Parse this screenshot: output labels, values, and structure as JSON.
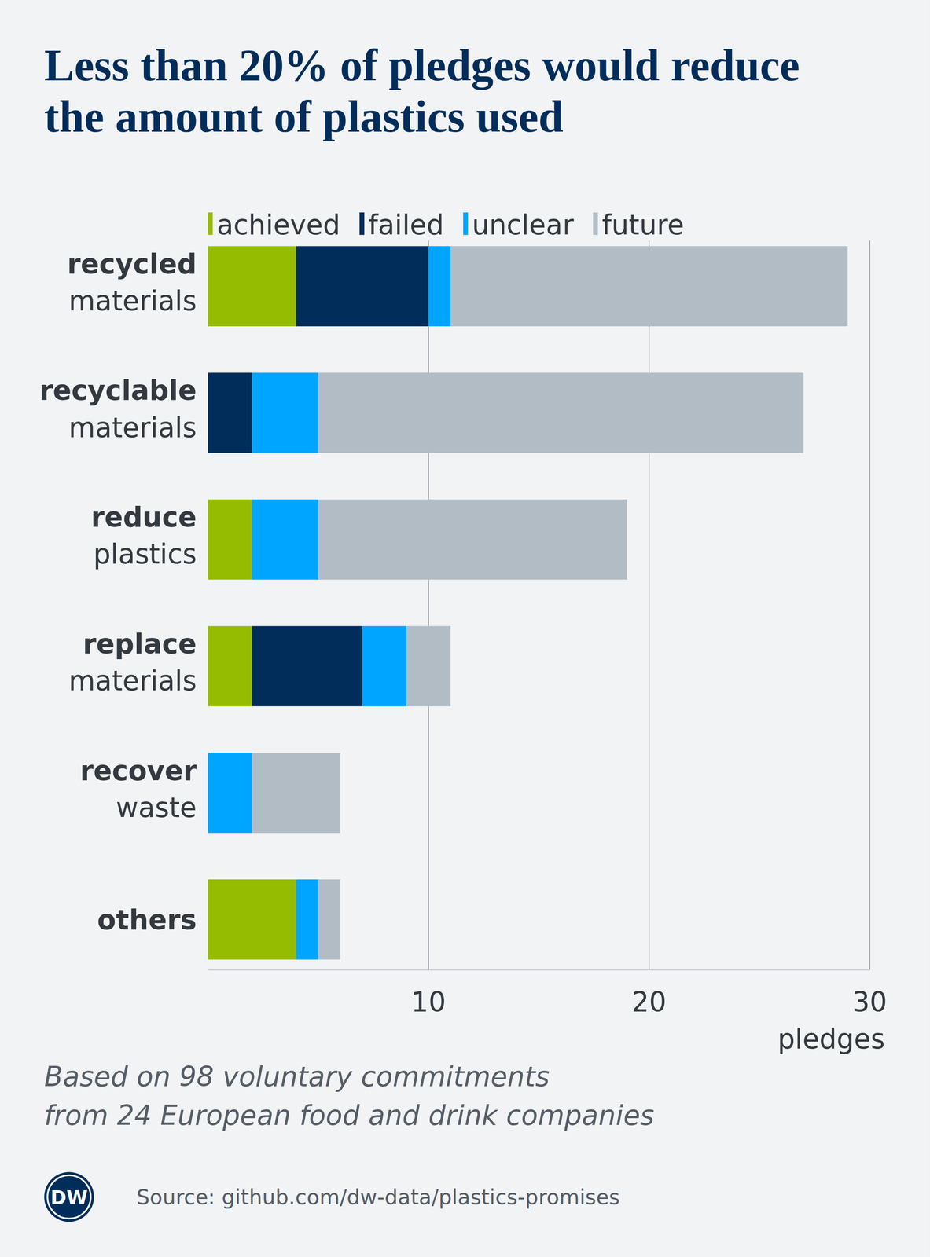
{
  "chart_data": {
    "type": "bar",
    "orientation": "horizontal",
    "stacked": true,
    "grid": true,
    "legend": "top",
    "data_labels": false,
    "title": "Less than 20% of pledges would reduce the amount of plastics used",
    "categories": [
      "recycled materials",
      "recyclable materials",
      "reduce plastics",
      "replace materials",
      "recover waste",
      "others"
    ],
    "series": [
      {
        "name": "achieved",
        "color": "#96bc00",
        "values": [
          4,
          0,
          2,
          2,
          0,
          4
        ]
      },
      {
        "name": "failed",
        "color": "#002d5a",
        "values": [
          6,
          2,
          0,
          5,
          0,
          0
        ]
      },
      {
        "name": "unclear",
        "color": "#00a5ff",
        "values": [
          1,
          3,
          3,
          2,
          2,
          1
        ]
      },
      {
        "name": "future",
        "color": "#b2bcc4",
        "values": [
          18,
          22,
          14,
          2,
          4,
          1
        ]
      }
    ],
    "xlim": [
      0,
      30
    ],
    "xticks": [
      10,
      20,
      30
    ],
    "x_label": "pledges",
    "note": [
      "Based on 98 voluntary commitments",
      "from 24 European food and drink companies"
    ],
    "logo": "DW",
    "source": "Source: github.com/dw-data/plastics-promises"
  }
}
